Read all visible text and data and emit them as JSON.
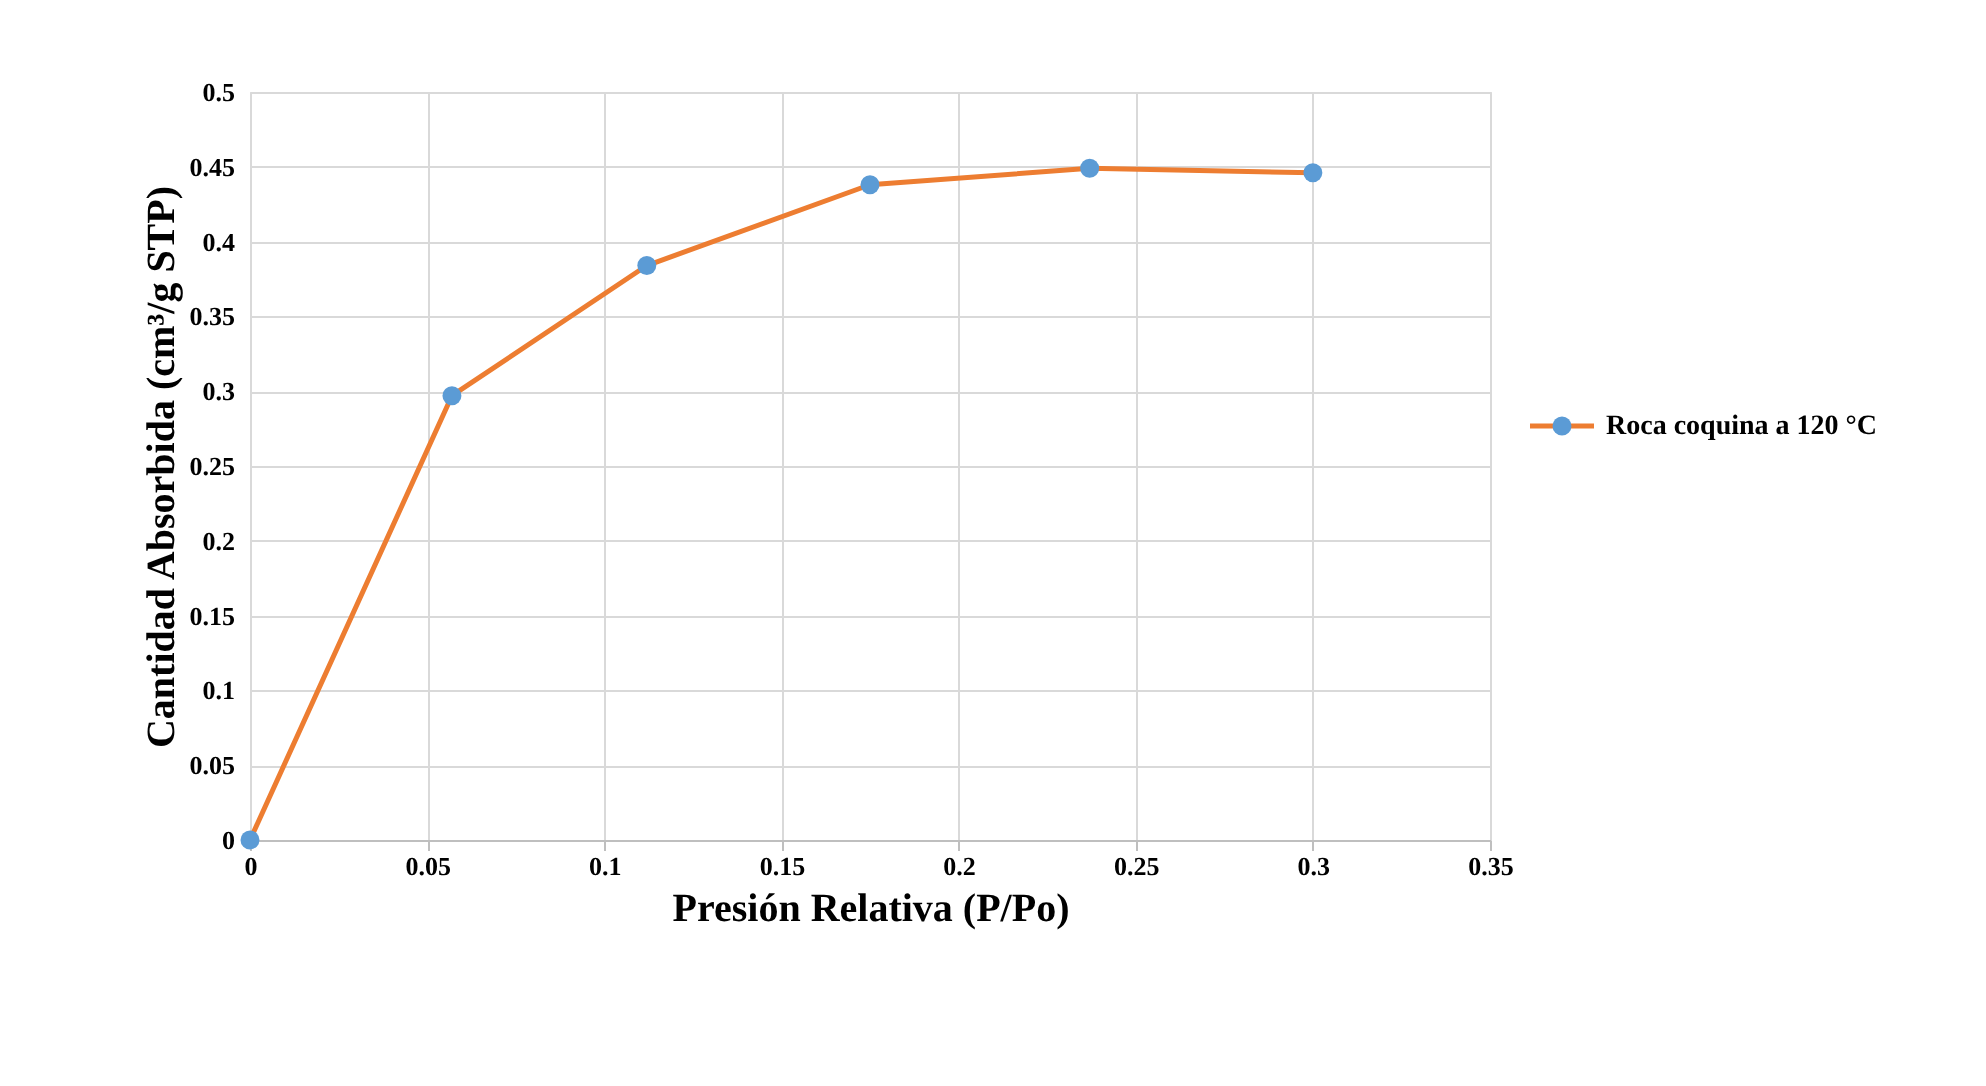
{
  "chart_data": {
    "type": "line",
    "xlabel": "Presión Relativa (P/Po)",
    "ylabel": "Cantidad Absorbida (cm³/g STP)",
    "x": [
      0,
      0.057,
      0.112,
      0.175,
      0.237,
      0.3
    ],
    "series": [
      {
        "name": "Roca coquina a 120 °C",
        "color": "#ed7d31",
        "colors": [
          "#5b9bd5",
          "#5b9bd5",
          "#5b9bd5",
          "#5b9bd5",
          "#5b9bd5",
          "#5b9bd5"
        ],
        "values": [
          0,
          0.297,
          0.384,
          0.438,
          0.449,
          0.446
        ]
      }
    ],
    "xlim": [
      0,
      0.35
    ],
    "xticks": [
      0,
      0.05,
      0.1,
      0.15,
      0.2,
      0.25,
      0.3,
      0.35
    ],
    "ylim": [
      0,
      0.5
    ],
    "yticks": [
      0,
      0.05,
      0.1,
      0.15,
      0.2,
      0.25,
      0.3,
      0.35,
      0.4,
      0.45,
      0.5
    ],
    "grid": true,
    "legend": "right",
    "marker": "circle",
    "line_style": "solid"
  }
}
